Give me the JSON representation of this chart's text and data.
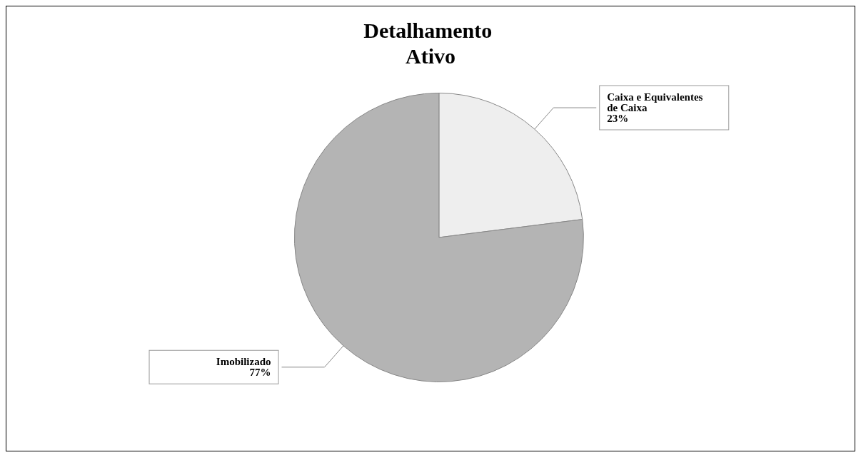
{
  "chart_data": {
    "type": "pie",
    "title": "Detalhamento Ativo",
    "categories": [
      "Caixa e Equivalentes de Caixa",
      "Imobilizado"
    ],
    "values": [
      23,
      77
    ],
    "colors": [
      "#eeeeee",
      "#b4b4b4"
    ],
    "value_labels": [
      "23%",
      "77%"
    ],
    "legend": false
  }
}
